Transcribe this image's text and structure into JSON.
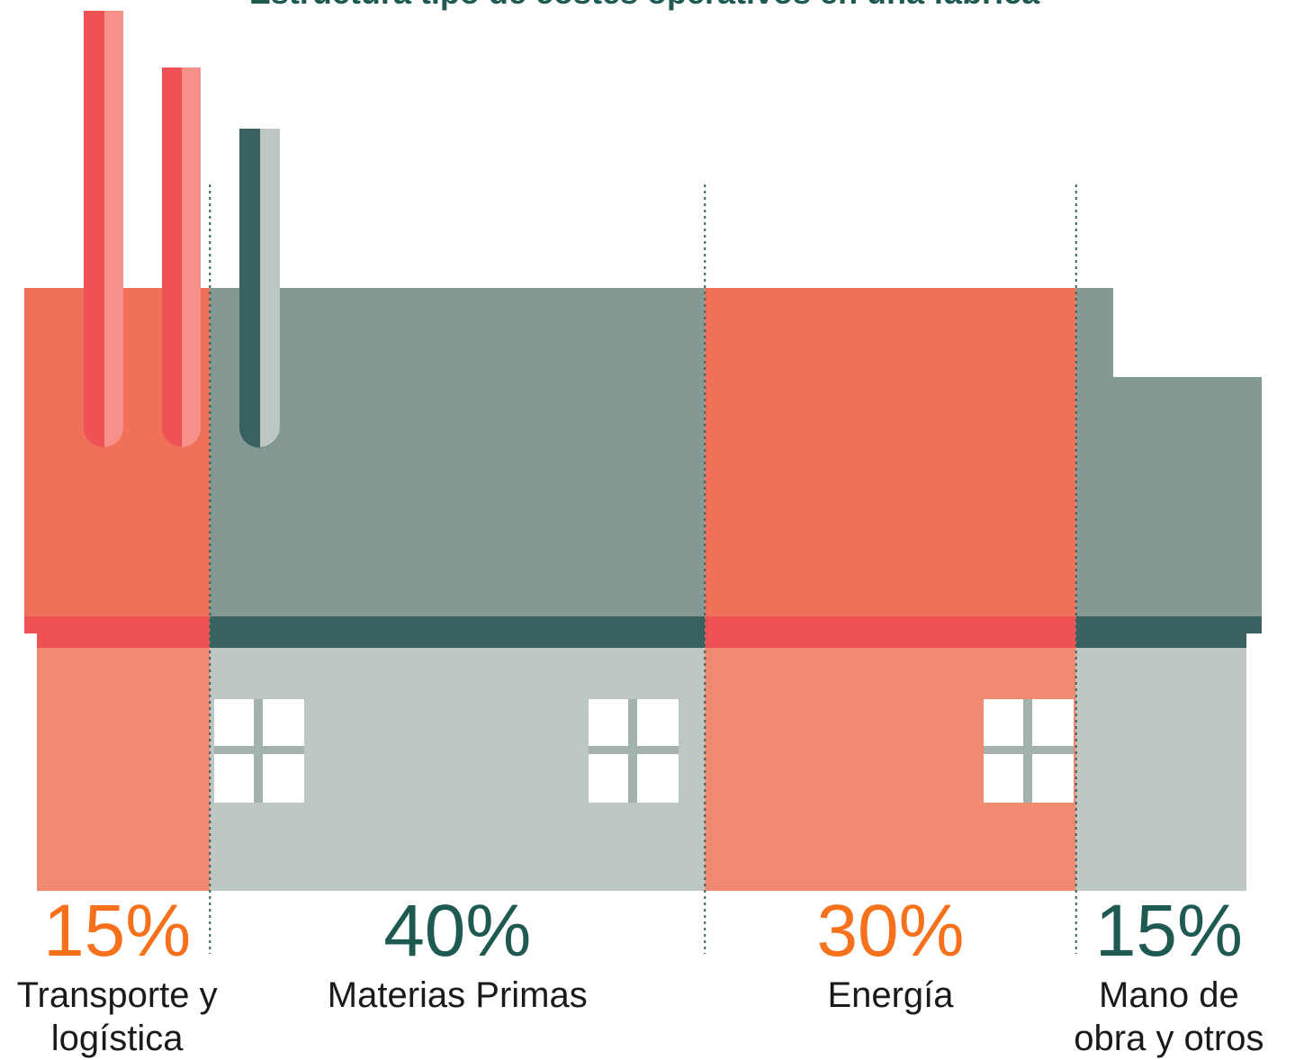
{
  "chart_data": {
    "type": "factory",
    "title": "Estructura tipo de costes operativos en una fábrica",
    "categories": [
      "Transporte y logística",
      "Materias Primas",
      "Energía",
      "Mano de obra y otros"
    ],
    "values": [
      15,
      40,
      30,
      15
    ],
    "value_labels": [
      "15%",
      "40%",
      "30%",
      "15%"
    ],
    "colors": [
      "#f07059",
      "#849894",
      "#f07059",
      "#849894"
    ],
    "label_colors": [
      "#f7711c",
      "#1f5a52",
      "#f7711c",
      "#1f5a52"
    ]
  }
}
